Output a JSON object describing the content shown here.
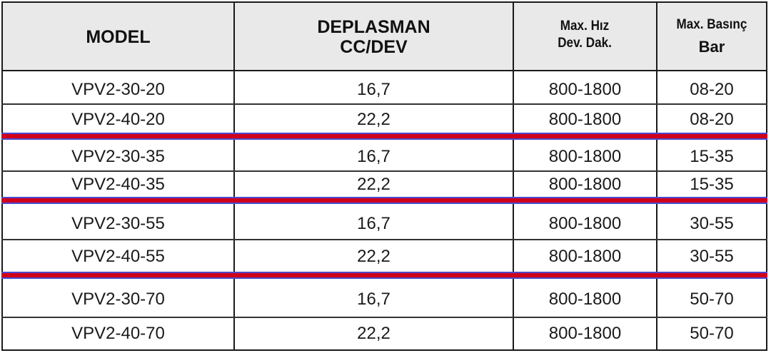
{
  "header": {
    "model": "MODEL",
    "deplasman_1": "DEPLASMAN",
    "deplasman_2": "CC/DEV",
    "hiz_1": "Max. Hız",
    "hiz_2": "Dev. Dak.",
    "basinc_1": "Max. Basınç",
    "basinc_2": "Bar"
  },
  "rows": [
    {
      "model": "VPV2-30-20",
      "deplasman": "16,7",
      "hiz": "800-1800",
      "basinc": "08-20"
    },
    {
      "model": "VPV2-40-20",
      "deplasman": "22,2",
      "hiz": "800-1800",
      "basinc": "08-20"
    },
    {
      "model": "VPV2-30-35",
      "deplasman": "16,7",
      "hiz": "800-1800",
      "basinc": "15-35"
    },
    {
      "model": "VPV2-40-35",
      "deplasman": "22,2",
      "hiz": "800-1800",
      "basinc": "15-35"
    },
    {
      "model": "VPV2-30-55",
      "deplasman": "16,7",
      "hiz": "800-1800",
      "basinc": "30-55"
    },
    {
      "model": "VPV2-40-55",
      "deplasman": "22,2",
      "hiz": "800-1800",
      "basinc": "30-55"
    },
    {
      "model": "VPV2-30-70",
      "deplasman": "16,7",
      "hiz": "800-1800",
      "basinc": "50-70"
    },
    {
      "model": "VPV2-40-70",
      "deplasman": "22,2",
      "hiz": "800-1800",
      "basinc": "50-70"
    }
  ],
  "colors": {
    "separator": "#d0021b",
    "separator_edge": "#4a4ad0",
    "header_bg": "#e9e9e9"
  }
}
